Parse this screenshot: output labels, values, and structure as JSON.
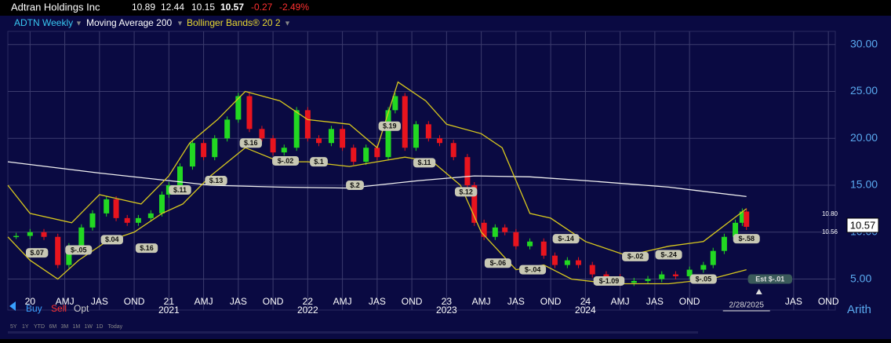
{
  "chart_data": {
    "type": "candlestick",
    "title": "Adtran Holdings Inc",
    "quote": {
      "open": 10.89,
      "high": 12.44,
      "low": 10.15,
      "last": 10.57,
      "change": -0.27,
      "change_pct": {
        "value": -2.49,
        "label": "-2.49%"
      }
    },
    "legend": [
      "ADTN Weekly",
      "Moving Average 200",
      "Bollinger Bands® 20 2"
    ],
    "scale_mode": "Arith",
    "trade_buttons": [
      "Buy",
      "Sell",
      "Opt"
    ],
    "timeframes": [
      "5Y",
      "1Y",
      "YTD",
      "6M",
      "3M",
      "1M",
      "1W",
      "1D",
      "Today"
    ],
    "price_markers": [
      {
        "value": 10.8,
        "label": "10.80"
      },
      {
        "value": 10.57,
        "label": "10.57"
      },
      {
        "value": 10.56,
        "label": "10.56"
      }
    ],
    "cursor_date": {
      "value": 2025.16,
      "label": "2/28/2025"
    },
    "xlim": [
      2019.84,
      2025.8
    ],
    "ylim": [
      1.7,
      31.4
    ],
    "yticks": [
      {
        "value": 5,
        "label": "5.00"
      },
      {
        "value": 10,
        "label": "10.00"
      },
      {
        "value": 15,
        "label": "15.00"
      },
      {
        "value": 20,
        "label": "20.00"
      },
      {
        "value": 25,
        "label": "25.00"
      },
      {
        "value": 30,
        "label": "30.00"
      }
    ],
    "xticks": [
      {
        "value": 2020,
        "label": "20"
      },
      {
        "value": 2020.25,
        "label": "AMJ"
      },
      {
        "value": 2020.5,
        "label": "JAS"
      },
      {
        "value": 2020.75,
        "label": "OND"
      },
      {
        "value": 2021,
        "label": "21"
      },
      {
        "value": 2021.25,
        "label": "AMJ"
      },
      {
        "value": 2021.5,
        "label": "JAS"
      },
      {
        "value": 2021.75,
        "label": "OND"
      },
      {
        "value": 2022,
        "label": "22"
      },
      {
        "value": 2022.25,
        "label": "AMJ"
      },
      {
        "value": 2022.5,
        "label": "JAS"
      },
      {
        "value": 2022.75,
        "label": "OND"
      },
      {
        "value": 2023,
        "label": "23"
      },
      {
        "value": 2023.25,
        "label": "AMJ"
      },
      {
        "value": 2023.5,
        "label": "JAS"
      },
      {
        "value": 2023.75,
        "label": "OND"
      },
      {
        "value": 2024,
        "label": "24"
      },
      {
        "value": 2024.25,
        "label": "AMJ"
      },
      {
        "value": 2024.5,
        "label": "JAS"
      },
      {
        "value": 2024.75,
        "label": "OND"
      },
      {
        "value": 2025.5,
        "label": "JAS"
      },
      {
        "value": 2025.75,
        "label": "OND"
      }
    ],
    "year_labels": [
      {
        "value": 2021,
        "label": "2021"
      },
      {
        "value": 2022,
        "label": "2022"
      },
      {
        "value": 2023,
        "label": "2023"
      },
      {
        "value": 2024,
        "label": "2024"
      }
    ],
    "grid": true,
    "series": [
      {
        "name": "ADTN Weekly",
        "color": "#38c6f0",
        "up_color": "#22d822",
        "down_color": "#e8141e",
        "x": [
          2019.9,
          2020.0,
          2020.1,
          2020.2,
          2020.28,
          2020.37,
          2020.45,
          2020.55,
          2020.62,
          2020.7,
          2020.78,
          2020.87,
          2020.95,
          2021.0,
          2021.08,
          2021.17,
          2021.25,
          2021.33,
          2021.42,
          2021.5,
          2021.58,
          2021.67,
          2021.75,
          2021.83,
          2021.92,
          2022.0,
          2022.08,
          2022.17,
          2022.25,
          2022.33,
          2022.42,
          2022.5,
          2022.58,
          2022.63,
          2022.7,
          2022.78,
          2022.87,
          2022.95,
          2023.05,
          2023.15,
          2023.2,
          2023.27,
          2023.35,
          2023.42,
          2023.5,
          2023.6,
          2023.7,
          2023.78,
          2023.87,
          2023.95,
          2024.05,
          2024.15,
          2024.25,
          2024.35,
          2024.45,
          2024.55,
          2024.65,
          2024.75,
          2024.85,
          2024.92,
          2025.0,
          2025.08,
          2025.13,
          2025.16
        ],
        "values": [
          9.6,
          10,
          9.5,
          6.5,
          8.5,
          10.5,
          12,
          13.5,
          11.5,
          11,
          11.5,
          12,
          14,
          15,
          17,
          19.5,
          18,
          20,
          22,
          24.5,
          21,
          20,
          18.5,
          19,
          23,
          20,
          19.5,
          21,
          19,
          17.5,
          19,
          18,
          23,
          24.5,
          19,
          21.5,
          20,
          19.5,
          18,
          15,
          11,
          9.5,
          10.5,
          10,
          8.5,
          9,
          7.5,
          6.5,
          7,
          6.5,
          5.5,
          5.2,
          4.6,
          4.8,
          5,
          5.5,
          5.3,
          6,
          6.5,
          8,
          9.5,
          11,
          12.2,
          10.57
        ]
      },
      {
        "name": "Moving Average 200",
        "color": "#f0f0f0",
        "x": [
          2019.84,
          2020.5,
          2021.3,
          2021.8,
          2022.3,
          2022.8,
          2023.2,
          2023.6,
          2024.0,
          2024.6,
          2025.16
        ],
        "values": [
          17.5,
          16.3,
          15,
          14.8,
          14.7,
          15.5,
          16,
          15.9,
          15.5,
          14.8,
          13.8
        ]
      },
      {
        "name": "Bollinger Bands® 20 2",
        "color": "#d8c81e",
        "x": [
          2019.84,
          2020.0,
          2020.3,
          2020.5,
          2020.8,
          2021.0,
          2021.15,
          2021.35,
          2021.55,
          2021.8,
          2022.0,
          2022.3,
          2022.5,
          2022.65,
          2022.85,
          2023.0,
          2023.25,
          2023.4,
          2023.6,
          2023.75,
          2024.0,
          2024.3,
          2024.6,
          2024.85,
          2025.16
        ],
        "values": [
          15,
          12,
          11,
          14,
          13,
          16,
          19.5,
          22,
          25,
          24,
          22,
          21.5,
          19,
          26,
          24,
          21.5,
          20.5,
          19,
          12,
          11.5,
          9,
          7.5,
          8.5,
          9,
          12.5
        ]
      },
      {
        "name": "Bollinger lower",
        "color": "#d8c81e",
        "x": [
          2019.84,
          2020.0,
          2020.2,
          2020.35,
          2020.55,
          2020.75,
          2020.95,
          2021.1,
          2021.3,
          2021.55,
          2021.8,
          2022.0,
          2022.3,
          2022.5,
          2022.7,
          2022.9,
          2023.1,
          2023.25,
          2023.5,
          2023.7,
          2023.9,
          2024.2,
          2024.6,
          2024.9,
          2025.16
        ],
        "values": [
          9.5,
          7,
          5,
          7,
          9,
          10,
          12,
          13,
          16,
          19,
          17.5,
          17.5,
          17,
          17.5,
          18,
          17.5,
          15,
          10,
          6,
          6.5,
          5,
          4.5,
          4.5,
          5,
          6
        ]
      }
    ],
    "annotations": [
      {
        "text": "$.07",
        "x": 2020.05,
        "y": 7.8
      },
      {
        "text": "$-.05",
        "x": 2020.35,
        "y": 8.1
      },
      {
        "text": "$.04",
        "x": 2020.59,
        "y": 9.2
      },
      {
        "text": "$.16",
        "x": 2020.84,
        "y": 8.3
      },
      {
        "text": "$.11",
        "x": 2021.08,
        "y": 14.5
      },
      {
        "text": "$.13",
        "x": 2021.34,
        "y": 15.5
      },
      {
        "text": "$.16",
        "x": 2021.59,
        "y": 19.5
      },
      {
        "text": "$-.02",
        "x": 2021.84,
        "y": 17.6
      },
      {
        "text": "$.1",
        "x": 2022.08,
        "y": 17.5
      },
      {
        "text": "$.2",
        "x": 2022.34,
        "y": 15
      },
      {
        "text": "$.19",
        "x": 2022.59,
        "y": 21.3
      },
      {
        "text": "$.11",
        "x": 2022.84,
        "y": 17.4
      },
      {
        "text": "$.12",
        "x": 2023.14,
        "y": 14.3
      },
      {
        "text": "$-.06",
        "x": 2023.37,
        "y": 6.7
      },
      {
        "text": "$-.04",
        "x": 2023.62,
        "y": 6
      },
      {
        "text": "$-.14",
        "x": 2023.86,
        "y": 9.3
      },
      {
        "text": "$-1.09",
        "x": 2024.17,
        "y": 4.8
      },
      {
        "text": "$-.02",
        "x": 2024.36,
        "y": 7.4
      },
      {
        "text": "$-.24",
        "x": 2024.6,
        "y": 7.6
      },
      {
        "text": "$-.05",
        "x": 2024.85,
        "y": 5
      },
      {
        "text": "$-.58",
        "x": 2025.16,
        "y": 9.3
      },
      {
        "text": "Est $-.01",
        "x": 2025.33,
        "y": 5
      }
    ]
  }
}
